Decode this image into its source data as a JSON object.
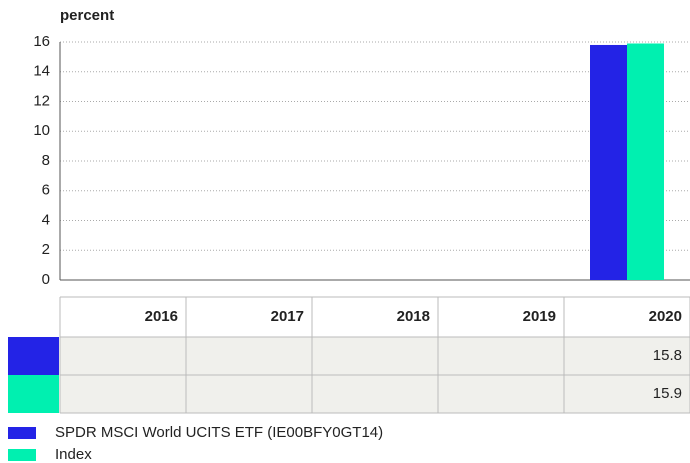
{
  "chart_data": {
    "type": "bar",
    "y_label": "percent",
    "categories": [
      "2016",
      "2017",
      "2018",
      "2019",
      "2020"
    ],
    "series": [
      {
        "name": "SPDR MSCI World UCITS ETF (IE00BFY0GT14)",
        "color": "#2323e6",
        "values": [
          null,
          null,
          null,
          null,
          15.8
        ]
      },
      {
        "name": "Index",
        "color": "#00f0b0",
        "values": [
          null,
          null,
          null,
          null,
          15.9
        ]
      }
    ],
    "ylim": [
      0,
      16
    ],
    "yticks": [
      0,
      2,
      4,
      6,
      8,
      10,
      12,
      14,
      16
    ],
    "grid": true
  }
}
